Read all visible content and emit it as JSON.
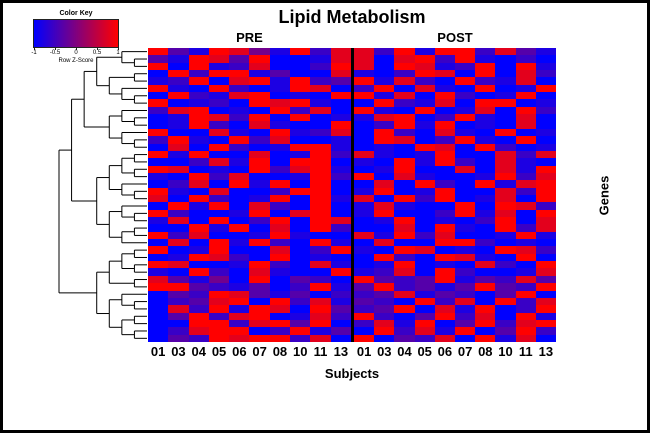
{
  "title": "Lipid Metabolism",
  "group_labels": {
    "pre": "PRE",
    "post": "POST"
  },
  "axis": {
    "x_label": "Subjects",
    "y_label": "Genes"
  },
  "color_key": {
    "title": "Color Key",
    "label": "Row Z-Score",
    "ticks": [
      "-1",
      "-0.5",
      "0",
      "0.5",
      "1"
    ],
    "gradient_low": "#0000FF",
    "gradient_high": "#FF0000"
  },
  "chart_data": {
    "type": "heatmap",
    "title": "Lipid Metabolism",
    "xlabel": "Subjects",
    "ylabel": "Genes",
    "legend": {
      "title": "Color Key",
      "label": "Row Z-Score",
      "ticks": [
        -1,
        -0.5,
        0,
        0.5,
        1
      ]
    },
    "colorscale": {
      "low": "#0000FF",
      "mid": "#80007F",
      "high": "#FF0000"
    },
    "col_groups": [
      {
        "name": "PRE",
        "columns": [
          "01",
          "03",
          "04",
          "05",
          "06",
          "07",
          "08",
          "10",
          "11",
          "13"
        ]
      },
      {
        "name": "POST",
        "columns": [
          "01",
          "03",
          "04",
          "05",
          "06",
          "07",
          "08",
          "10",
          "11",
          "13"
        ]
      }
    ],
    "row_count": 40,
    "value_encoding": "each char digit 0-9 maps linearly to Row Z-Score -1..+1 (0=blue -1, 9=red +1); 20 chars per row = 10 PRE cols then 10 POST cols; values estimated from pixels",
    "rows": [
      "93198419288291992831",
      "31983900188089291020",
      "90912800298098129091",
      "09299130081029809082",
      "12908919239182092180",
      "91092019802908109019",
      "09218901099180920190",
      "90120989100921809901",
      "28901092809109018092",
      "01982909011890291080",
      "01920810090291901080",
      "90081091280920810901",
      "29109280010980291090",
      "08092019910109809201",
      "91900801928101900828",
      "00281909901091920810",
      "98010928910190080819",
      "10928001929081001928",
      "02809190900809209189",
      "91080029901901900829",
      "80920190918092901809",
      "09190820901810090982",
      "92001908901900291809",
      "18090290980190102908",
      "00919080920080910928",
      "92800191008192800191",
      "08091920910800992010",
      "90190080291098010982",
      "01982090100920981090",
      "98001920810190108209",
      "10920810091280920018",
      "83140903209323913283",
      "99321302913923139329",
      "03298313022381320390",
      "02389092813209280928",
      "08291980932390819029",
      "03928901829203928091",
      "00992893902819039289",
      "02899029130928190392",
      "03298992809032809180"
    ],
    "row_dendrogram_tree": [
      [
        [
          [
            [
              0,
              [
                1,
                2
              ]
            ],
            [
              [
                3,
                4
              ],
              [
                5,
                [
                  6,
                  7
                ]
              ]
            ]
          ],
          [
            [
              8,
              [
                9,
                10
              ]
            ],
            [
              11,
              [
                12,
                13
              ]
            ]
          ]
        ],
        [
          [
            [
              [
                14,
                15
              ],
              [
                16,
                17
              ]
            ],
            [
              18,
              [
                19,
                20
              ]
            ]
          ],
          [
            [
              21,
              [
                22,
                23
              ]
            ],
            [
              [
                24,
                25
              ],
              26
            ]
          ]
        ]
      ],
      [
        [
          [
            [
              27,
              28
            ],
            [
              29,
              30
            ]
          ],
          [
            31,
            32
          ]
        ],
        [
          [
            33,
            [
              34,
              35
            ]
          ],
          [
            [
              36,
              37
            ],
            [
              38,
              39
            ]
          ]
        ]
      ]
    ]
  }
}
